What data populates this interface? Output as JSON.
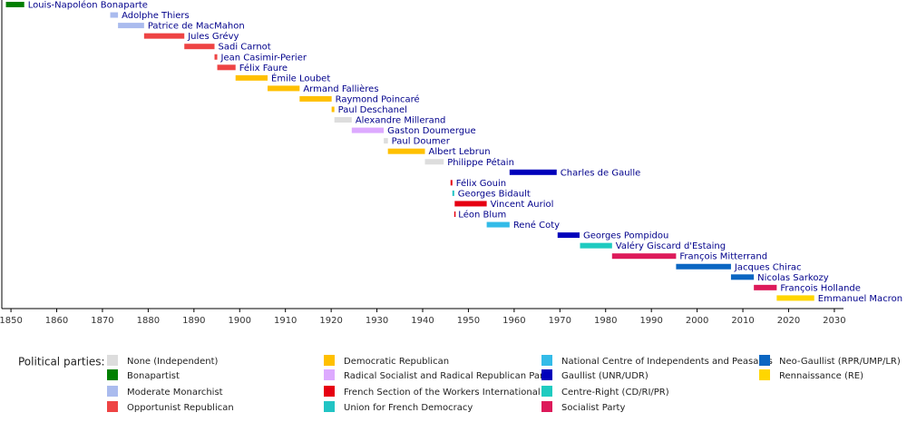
{
  "chart_data": {
    "type": "timeline",
    "categories": [
      "Louis-Napoléon Bonaparte",
      "Adolphe Thiers",
      "Patrice de MacMahon",
      "Jules Grévy",
      "Sadi Carnot",
      "Jean Casimir-Perier",
      "Félix Faure",
      "Émile Loubet",
      "Armand Fallières",
      "Raymond Poincaré",
      "Paul Deschanel",
      "Alexandre Millerand",
      "Gaston Doumergue",
      "Paul Doumer",
      "Albert Lebrun",
      "Philippe Pétain",
      "Charles de Gaulle",
      "Félix Gouin",
      "Georges Bidault",
      "Vincent Auriol",
      "Léon Blum",
      "René Coty",
      "Georges Pompidou",
      "Valéry Giscard d'Estaing",
      "François Mitterrand",
      "Jacques Chirac",
      "Nicolas Sarkozy",
      "François Hollande",
      "Emmanuel Macron"
    ],
    "start": [
      1848.9,
      1871.7,
      1873.4,
      1879.1,
      1887.9,
      1894.5,
      1895.1,
      1899.1,
      1906.1,
      1913.1,
      1920.1,
      1920.7,
      1924.5,
      1931.5,
      1932.4,
      1940.5,
      1959.0,
      1946.1,
      1946.5,
      1947.0,
      1946.9,
      1954.0,
      1969.5,
      1974.4,
      1981.4,
      1995.4,
      2007.4,
      2012.4,
      2017.4
    ],
    "end": [
      1852.9,
      1873.4,
      1879.1,
      1887.9,
      1894.5,
      1895.1,
      1899.1,
      1906.1,
      1913.1,
      1920.1,
      1920.7,
      1924.5,
      1931.5,
      1932.4,
      1940.5,
      1944.6,
      1969.3,
      1946.5,
      1946.9,
      1954.0,
      1947.0,
      1959.0,
      1974.3,
      1981.4,
      1995.4,
      2007.4,
      2012.4,
      2017.4,
      2025.6
    ],
    "colors": [
      "#008000",
      "#aabbee",
      "#aabbee",
      "#ee4444",
      "#ee4444",
      "#ee4444",
      "#ee4444",
      "#ffc000",
      "#ffc000",
      "#ffc000",
      "#ffc000",
      "#dddddd",
      "#ddaaff",
      "#dddddd",
      "#ffc000",
      "#dddddd",
      "#0000bb",
      "#e60012",
      "#22c4c4",
      "#e60012",
      "#e60012",
      "#33bbe8",
      "#0000bb",
      "#1ecbc0",
      "#dd1a5a",
      "#0b66c2",
      "#0b66c2",
      "#dd1a5a",
      "#ffd600"
    ],
    "xlim": [
      1848,
      2032
    ],
    "xticks": [
      1850,
      1860,
      1870,
      1880,
      1890,
      1900,
      1910,
      1920,
      1930,
      1940,
      1950,
      1960,
      1970,
      1980,
      1990,
      2000,
      2010,
      2020,
      2030
    ],
    "legend_title": "Political parties:",
    "legend": [
      {
        "name": "None (Independent)",
        "color": "#dddddd"
      },
      {
        "name": "Bonapartist",
        "color": "#008000"
      },
      {
        "name": "Moderate Monarchist",
        "color": "#aabbee"
      },
      {
        "name": "Opportunist Republican",
        "color": "#ee4444"
      },
      {
        "name": "Democratic Republican",
        "color": "#ffc000"
      },
      {
        "name": "Radical Socialist and Radical Republican Party",
        "color": "#ddaaff"
      },
      {
        "name": "French Section of the Workers International",
        "color": "#e60012"
      },
      {
        "name": "Union for French Democracy",
        "color": "#22c4c4"
      },
      {
        "name": "National Centre of Independents and Peasants",
        "color": "#33bbe8"
      },
      {
        "name": "Gaullist (UNR/UDR)",
        "color": "#0000bb"
      },
      {
        "name": "Centre-Right (CD/RI/PR)",
        "color": "#1ecbc0"
      },
      {
        "name": "Socialist Party",
        "color": "#dd1a5a"
      },
      {
        "name": "Neo-Gaullist (RPR/UMP/LR)",
        "color": "#0b66c2"
      },
      {
        "name": "Rennaissance (RE)",
        "color": "#ffd600"
      }
    ]
  }
}
